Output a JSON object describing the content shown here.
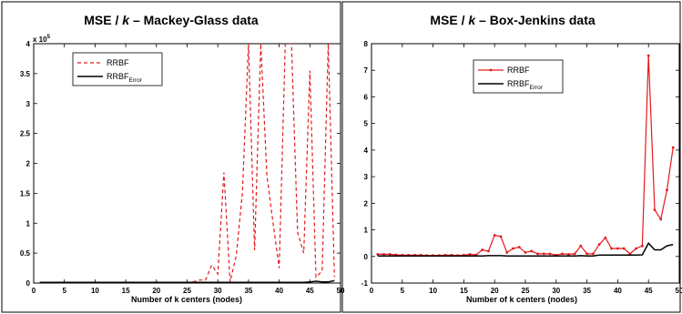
{
  "chart_data": [
    {
      "type": "line",
      "title": "MSE / k – Mackey-Glass data",
      "title_parts": [
        "MSE / ",
        "k",
        " – Mackey-Glass data"
      ],
      "xlabel": "Number of k centers (nodes)",
      "ylabel": "",
      "y_multiplier": "x 10",
      "y_multiplier_exp": "5",
      "xlim": [
        0,
        50
      ],
      "ylim": [
        0,
        4
      ],
      "xticks": [
        0,
        5,
        10,
        15,
        20,
        25,
        30,
        35,
        40,
        45,
        50
      ],
      "yticks": [
        0,
        0.5,
        1,
        1.5,
        2,
        2.5,
        3,
        3.5,
        4
      ],
      "ytick_labels": [
        "0",
        "0.5",
        "1",
        "1.5",
        "2",
        "2.5",
        "3",
        "3.5",
        "4"
      ],
      "grid": false,
      "legend_position": "top-left",
      "series": [
        {
          "name": "RRBF",
          "name_sub": "",
          "color": "#e41a1c",
          "style": "dashed",
          "x": [
            1,
            2,
            3,
            4,
            5,
            6,
            7,
            8,
            9,
            10,
            11,
            12,
            13,
            14,
            15,
            16,
            17,
            18,
            19,
            20,
            21,
            22,
            23,
            24,
            25,
            26,
            27,
            28,
            29,
            30,
            31,
            32,
            33,
            34,
            35,
            36,
            37,
            38,
            39,
            40,
            41,
            42,
            43,
            44,
            45,
            46,
            47,
            48,
            49
          ],
          "values": [
            0.01,
            0.01,
            0.01,
            0.01,
            0.01,
            0.01,
            0.01,
            0.01,
            0.01,
            0.01,
            0.01,
            0.01,
            0.01,
            0.01,
            0.01,
            0.01,
            0.01,
            0.01,
            0.01,
            0.01,
            0.01,
            0.01,
            0.01,
            0.01,
            0.01,
            0.02,
            0.05,
            0.05,
            0.3,
            0.15,
            1.85,
            0.02,
            0.45,
            1.5,
            4.0,
            0.55,
            4.0,
            1.8,
            1.0,
            0.25,
            4.0,
            4.0,
            0.85,
            0.5,
            3.55,
            0.1,
            0.2,
            4.0,
            0.1
          ]
        },
        {
          "name": "RRBF",
          "name_sub": "Error",
          "color": "#000000",
          "style": "solid",
          "x": [
            1,
            2,
            3,
            4,
            5,
            6,
            7,
            8,
            9,
            10,
            11,
            12,
            13,
            14,
            15,
            16,
            17,
            18,
            19,
            20,
            21,
            22,
            23,
            24,
            25,
            26,
            27,
            28,
            29,
            30,
            31,
            32,
            33,
            34,
            35,
            36,
            37,
            38,
            39,
            40,
            41,
            42,
            43,
            44,
            45,
            46,
            47,
            48,
            49
          ],
          "values": [
            0.01,
            0.01,
            0.01,
            0.01,
            0.01,
            0.01,
            0.01,
            0.01,
            0.01,
            0.01,
            0.01,
            0.01,
            0.01,
            0.01,
            0.01,
            0.01,
            0.01,
            0.01,
            0.01,
            0.01,
            0.01,
            0.01,
            0.01,
            0.01,
            0.01,
            0.01,
            0.01,
            0.01,
            0.01,
            0.01,
            0.01,
            0.01,
            0.01,
            0.01,
            0.01,
            0.01,
            0.01,
            0.01,
            0.01,
            0.01,
            0.01,
            0.01,
            0.01,
            0.01,
            0.02,
            0.03,
            0.02,
            0.02,
            0.04
          ]
        }
      ]
    },
    {
      "type": "line",
      "title": "MSE / k – Box-Jenkins data",
      "title_parts": [
        "MSE / ",
        "k",
        " – Box-Jenkins data"
      ],
      "xlabel": "Number of k centers (nodes)",
      "ylabel": "",
      "xlim": [
        0,
        50
      ],
      "ylim": [
        -1,
        8
      ],
      "xticks": [
        0,
        5,
        10,
        15,
        20,
        25,
        30,
        35,
        40,
        45,
        50
      ],
      "yticks": [
        -1,
        0,
        1,
        2,
        3,
        4,
        5,
        6,
        7,
        8
      ],
      "ytick_labels": [
        "-1",
        "0",
        "1",
        "2",
        "3",
        "4",
        "5",
        "6",
        "7",
        "8"
      ],
      "grid": false,
      "legend_position": "top-right",
      "series": [
        {
          "name": "RRBF",
          "name_sub": "",
          "color": "#e41a1c",
          "style": "solid-markers",
          "x": [
            1,
            2,
            3,
            4,
            5,
            6,
            7,
            8,
            9,
            10,
            11,
            12,
            13,
            14,
            15,
            16,
            17,
            18,
            19,
            20,
            21,
            22,
            23,
            24,
            25,
            26,
            27,
            28,
            29,
            30,
            31,
            32,
            33,
            34,
            35,
            36,
            37,
            38,
            39,
            40,
            41,
            42,
            43,
            44,
            45,
            46,
            47,
            48,
            49
          ],
          "values": [
            0.08,
            0.08,
            0.08,
            0.06,
            0.05,
            0.05,
            0.05,
            0.05,
            0.04,
            0.04,
            0.04,
            0.05,
            0.05,
            0.04,
            0.05,
            0.08,
            0.06,
            0.25,
            0.2,
            0.8,
            0.75,
            0.15,
            0.3,
            0.35,
            0.15,
            0.2,
            0.1,
            0.1,
            0.1,
            0.05,
            0.1,
            0.08,
            0.1,
            0.4,
            0.1,
            0.1,
            0.45,
            0.7,
            0.3,
            0.3,
            0.3,
            0.1,
            0.3,
            0.4,
            7.55,
            1.75,
            1.4,
            2.5,
            4.1
          ]
        },
        {
          "name": "RRBF",
          "name_sub": "Error",
          "color": "#000000",
          "style": "solid",
          "x": [
            1,
            2,
            3,
            4,
            5,
            6,
            7,
            8,
            9,
            10,
            11,
            12,
            13,
            14,
            15,
            16,
            17,
            18,
            19,
            20,
            21,
            22,
            23,
            24,
            25,
            26,
            27,
            28,
            29,
            30,
            31,
            32,
            33,
            34,
            35,
            36,
            37,
            38,
            39,
            40,
            41,
            42,
            43,
            44,
            45,
            46,
            47,
            48,
            49
          ],
          "values": [
            0.02,
            0.02,
            0.02,
            0.02,
            0.02,
            0.02,
            0.02,
            0.02,
            0.02,
            0.02,
            0.02,
            0.02,
            0.02,
            0.02,
            0.02,
            0.02,
            0.02,
            0.02,
            0.03,
            0.03,
            0.03,
            0.02,
            0.02,
            0.02,
            0.02,
            0.02,
            0.02,
            0.02,
            0.02,
            0.02,
            0.02,
            0.02,
            0.02,
            0.03,
            0.02,
            0.02,
            0.05,
            0.05,
            0.05,
            0.05,
            0.05,
            0.05,
            0.05,
            0.06,
            0.5,
            0.25,
            0.25,
            0.4,
            0.45
          ]
        }
      ]
    }
  ]
}
